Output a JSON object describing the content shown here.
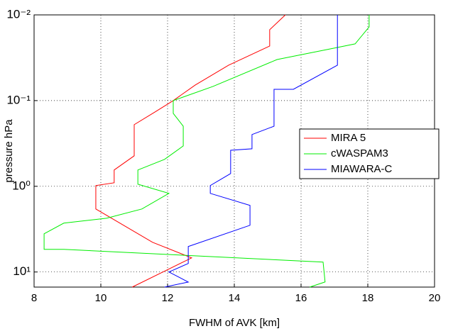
{
  "chart_data": {
    "type": "line",
    "xlabel": "FWHM of AVK [km]",
    "ylabel": "pressure hPa",
    "xlim": [
      8,
      20
    ],
    "xticks": [
      8,
      10,
      12,
      14,
      16,
      18,
      20
    ],
    "ylim": [
      0.01,
      15
    ],
    "ylog": true,
    "yreverse": true,
    "yticks": [
      {
        "value": 0.01,
        "label": "10⁻²"
      },
      {
        "value": 0.1,
        "label": "10⁻¹"
      },
      {
        "value": 1,
        "label": "10⁰"
      },
      {
        "value": 10,
        "label": "10¹"
      }
    ],
    "grid": true,
    "legend": "right",
    "series": [
      {
        "name": "MIRA 5",
        "color": "#ff0000",
        "x": [
          15.53,
          15.06,
          15.06,
          13.83,
          12.83,
          12.17,
          11.62,
          11.0,
          11.0,
          10.4,
          10.4,
          9.85,
          9.85,
          11.55,
          12.72,
          10.94
        ],
        "values": [
          0.01,
          0.0149,
          0.0231,
          0.0386,
          0.0658,
          0.1,
          0.136,
          0.191,
          0.441,
          0.645,
          0.91,
          0.98,
          1.84,
          4.5,
          6.84,
          15
        ]
      },
      {
        "name": "cWASPAM3",
        "color": "#00ee00",
        "x": [
          18.04,
          18.04,
          17.62,
          16.98,
          15.28,
          13.36,
          12.17,
          12.17,
          12.47,
          12.47,
          11.91,
          11.11,
          11.11,
          12.04,
          11.23,
          10.17,
          8.89,
          8.3,
          8.3,
          8.89,
          16.66,
          16.72,
          16.26
        ],
        "values": [
          0.01,
          0.0138,
          0.0218,
          0.0245,
          0.0332,
          0.0684,
          0.1,
          0.141,
          0.199,
          0.338,
          0.485,
          0.645,
          0.945,
          1.21,
          1.84,
          2.36,
          2.69,
          3.58,
          5.44,
          5.44,
          7.66,
          13.06,
          15
        ]
      },
      {
        "name": "MIAWARA-C",
        "color": "#0000ff",
        "x": [
          17.09,
          17.09,
          15.77,
          15.19,
          15.19,
          14.53,
          14.53,
          13.89,
          13.89,
          13.28,
          13.28,
          14.47,
          14.47,
          12.62,
          12.62,
          12.04,
          12.62,
          11.91
        ],
        "values": [
          0.01,
          0.0386,
          0.0738,
          0.0738,
          0.199,
          0.249,
          0.365,
          0.38,
          0.71,
          0.98,
          1.21,
          1.67,
          2.85,
          5.04,
          7.95,
          10,
          13.1,
          15
        ]
      }
    ]
  }
}
